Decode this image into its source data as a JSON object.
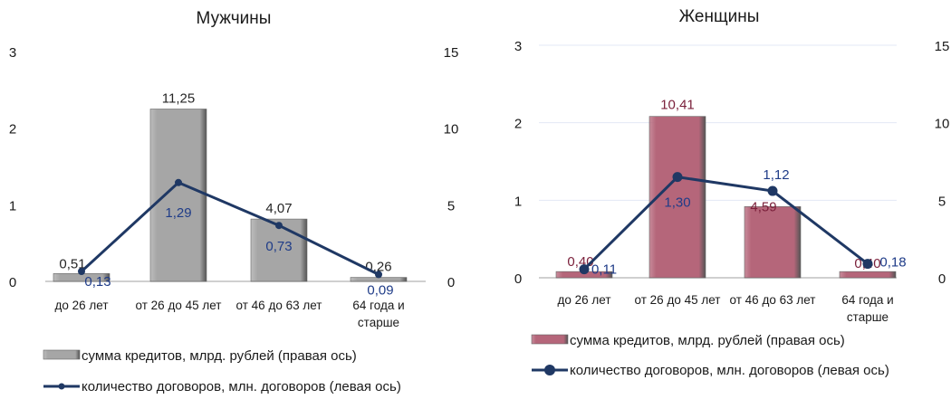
{
  "chart_data": [
    {
      "type": "bar+line",
      "title": "Мужчины",
      "categories": [
        "до 26 лет",
        "от 26 до 45 лет",
        "от 46 до 63 лет",
        "64 года и старше"
      ],
      "left_axis": {
        "ylim": [
          0,
          3
        ],
        "ticks": [
          "0",
          "1",
          "2",
          "3"
        ]
      },
      "right_axis": {
        "ylim": [
          0,
          15
        ],
        "ticks": [
          "0",
          "5",
          "10",
          "15"
        ]
      },
      "series": [
        {
          "name": "сумма кредитов, млрд. рублей (правая ось)",
          "type": "bar",
          "axis": "right",
          "values": [
            0.51,
            11.25,
            4.07,
            0.26
          ],
          "labels": [
            "0,51",
            "11,25",
            "4,07",
            "0,26"
          ],
          "color": "#a6a6a6",
          "label_color": "#262626"
        },
        {
          "name": "количество договоров, млн. договоров (левая ось)",
          "type": "line",
          "axis": "left",
          "values": [
            0.13,
            1.29,
            0.73,
            0.09
          ],
          "labels": [
            "0,13",
            "1,29",
            "0,73",
            "0,09"
          ],
          "color": "#1f3864",
          "label_color": "#1f3c88"
        }
      ],
      "grid": false,
      "legend": "bottom"
    },
    {
      "type": "bar+line",
      "title": "Женщины",
      "categories": [
        "до 26 лет",
        "от 26 до 45 лет",
        "от 46 до 63 лет",
        "64 года и старше"
      ],
      "left_axis": {
        "ylim": [
          0,
          3
        ],
        "ticks": [
          "0",
          "1",
          "2",
          "3"
        ]
      },
      "right_axis": {
        "ylim": [
          0,
          15
        ],
        "ticks": [
          "0",
          "5",
          "10",
          "15"
        ]
      },
      "series": [
        {
          "name": "сумма кредитов, млрд. рублей (правая ось)",
          "type": "bar",
          "axis": "right",
          "values": [
            0.4,
            10.41,
            4.59,
            0.4
          ],
          "labels": [
            "0,40",
            "10,41",
            "4,59",
            "0,40"
          ],
          "color": "#b5667a",
          "label_color": "#7a1f3a"
        },
        {
          "name": "количество договоров, млн. договоров (левая ось)",
          "type": "line",
          "axis": "left",
          "values": [
            0.11,
            1.3,
            1.12,
            0.18
          ],
          "labels": [
            "0,11",
            "1,30",
            "1,12",
            "0,18"
          ],
          "color": "#1f3864",
          "label_color": "#1f3c88"
        }
      ],
      "grid": true,
      "legend": "bottom"
    }
  ]
}
